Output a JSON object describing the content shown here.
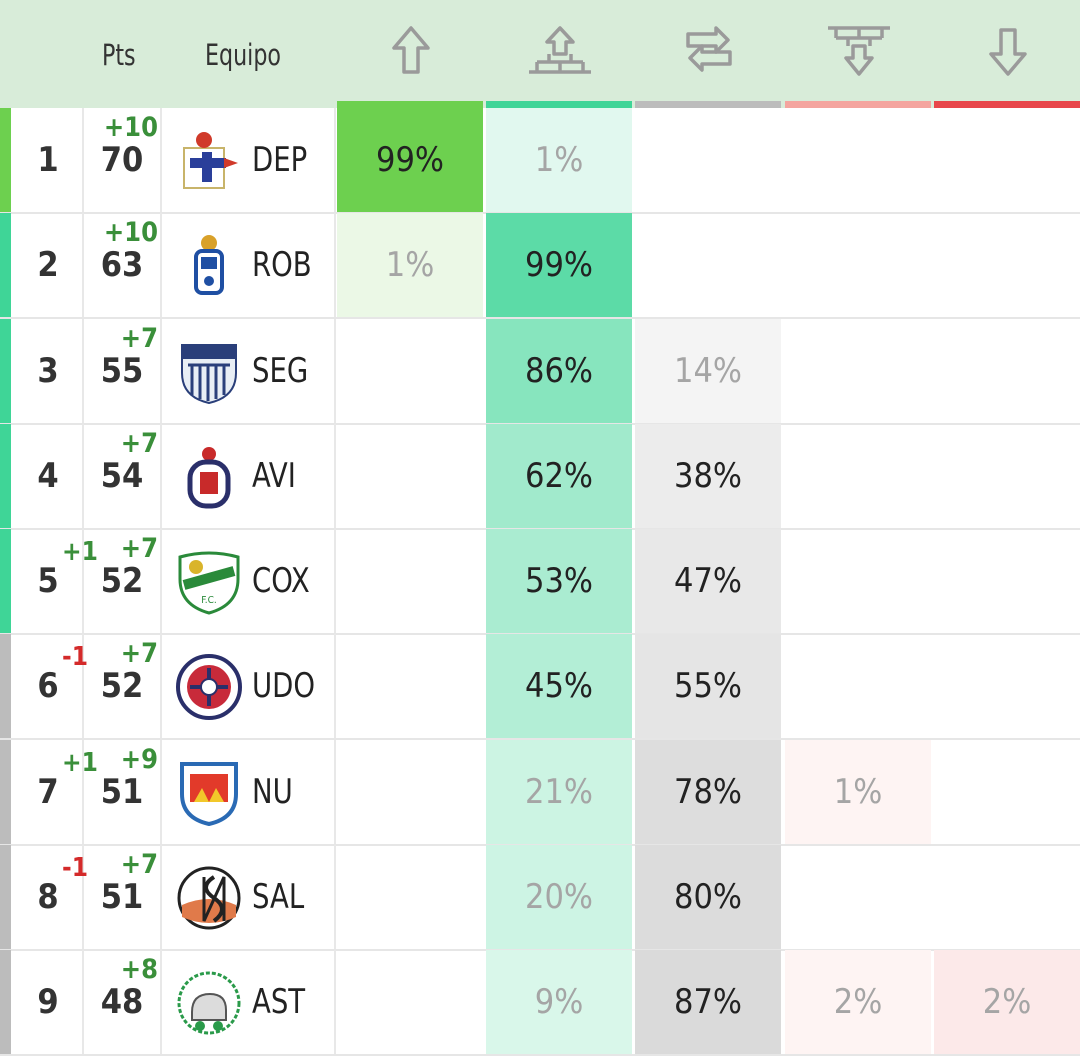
{
  "header": {
    "pts_label": "Pts",
    "team_label": "Equipo",
    "columns": [
      {
        "icon": "arrow-up-icon",
        "color": "#6dd04f"
      },
      {
        "icon": "playoff-bracket-icon",
        "color": "#3fd597"
      },
      {
        "icon": "swap-arrows-icon",
        "color": "#bcbcbc"
      },
      {
        "icon": "relegation-bracket-icon",
        "color": "#f4a59f"
      },
      {
        "icon": "arrow-down-icon",
        "color": "#e8474b"
      }
    ]
  },
  "rows": [
    {
      "pos": "1",
      "pos_change": "",
      "pts": "70",
      "pts_change": "+10",
      "team": "DEP",
      "zone_color": "#6dd04f",
      "badge": "deportivo-badge",
      "cells": [
        "99%",
        "1%",
        "",
        "",
        ""
      ]
    },
    {
      "pos": "2",
      "pos_change": "",
      "pts": "63",
      "pts_change": "+10",
      "team": "ROB",
      "zone_color": "#3fd597",
      "badge": "oviedo-badge",
      "cells": [
        "1%",
        "99%",
        "",
        "",
        ""
      ]
    },
    {
      "pos": "3",
      "pos_change": "",
      "pts": "55",
      "pts_change": "+7",
      "team": "SEG",
      "zone_color": "#3fd597",
      "badge": "segoviana-badge",
      "cells": [
        "",
        "86%",
        "14%",
        "",
        ""
      ]
    },
    {
      "pos": "4",
      "pos_change": "",
      "pts": "54",
      "pts_change": "+7",
      "team": "AVI",
      "zone_color": "#3fd597",
      "badge": "avila-badge",
      "cells": [
        "",
        "62%",
        "38%",
        "",
        ""
      ]
    },
    {
      "pos": "5",
      "pos_change": "+1",
      "pts": "52",
      "pts_change": "+7",
      "team": "COX",
      "zone_color": "#3fd597",
      "badge": "coruxo-badge",
      "cells": [
        "",
        "53%",
        "47%",
        "",
        ""
      ]
    },
    {
      "pos": "6",
      "pos_change": "-1",
      "pts": "52",
      "pts_change": "+7",
      "team": "UDO",
      "zone_color": "#bcbcbc",
      "badge": "ourense-badge",
      "cells": [
        "",
        "45%",
        "55%",
        "",
        ""
      ]
    },
    {
      "pos": "7",
      "pos_change": "+1",
      "pts": "51",
      "pts_change": "+9",
      "team": "NU",
      "zone_color": "#bcbcbc",
      "badge": "numancia-badge",
      "cells": [
        "",
        "21%",
        "78%",
        "1%",
        ""
      ]
    },
    {
      "pos": "8",
      "pos_change": "-1",
      "pts": "51",
      "pts_change": "+7",
      "team": "SAL",
      "zone_color": "#bcbcbc",
      "badge": "salamanca-badge",
      "cells": [
        "",
        "20%",
        "80%",
        "",
        ""
      ]
    },
    {
      "pos": "9",
      "pos_change": "",
      "pts": "48",
      "pts_change": "+8",
      "team": "AST",
      "zone_color": "#bcbcbc",
      "badge": "astorga-badge",
      "cells": [
        "",
        "9%",
        "87%",
        "2%",
        "2%"
      ]
    }
  ]
}
